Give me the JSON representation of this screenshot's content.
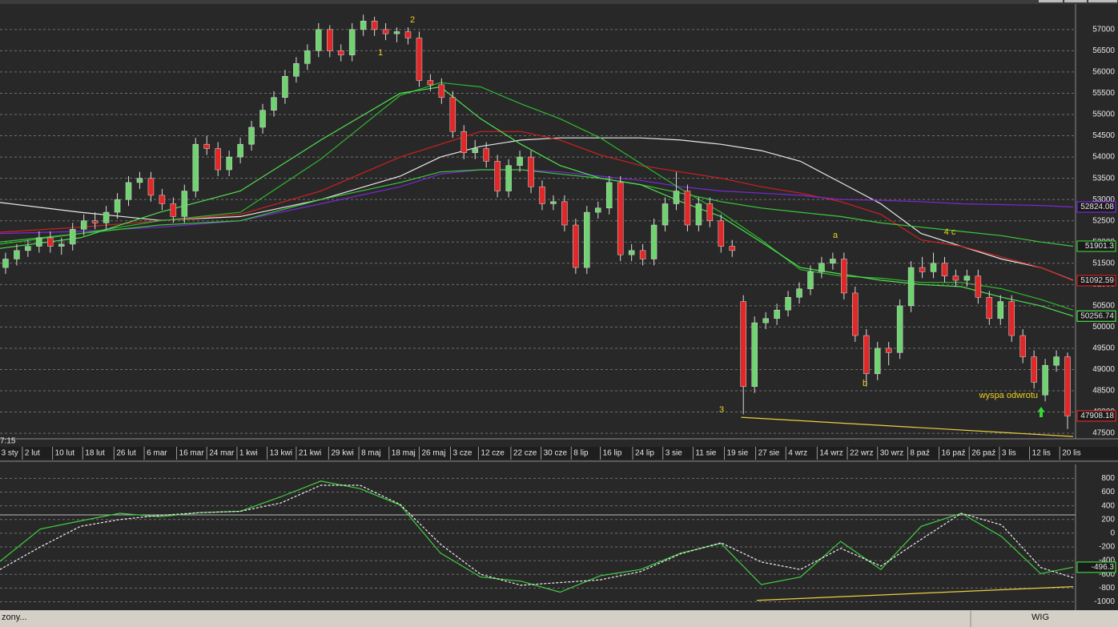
{
  "chart_data": [
    {
      "type": "candlestick",
      "xlim": [
        -0.5,
        95.5
      ],
      "xticks": [
        {
          "value": -0.6,
          "label": "3 sty"
        },
        {
          "value": 1.5,
          "label": "2 lut"
        },
        {
          "value": 4.2,
          "label": "10 lut"
        },
        {
          "value": 6.9,
          "label": "18 lut"
        },
        {
          "value": 9.7,
          "label": "26 lut"
        },
        {
          "value": 12.4,
          "label": "6 mar"
        },
        {
          "value": 15.3,
          "label": "16 mar"
        },
        {
          "value": 18.0,
          "label": "24 mar"
        },
        {
          "value": 20.7,
          "label": "1 kwi"
        },
        {
          "value": 23.4,
          "label": "13 kwi"
        },
        {
          "value": 26.0,
          "label": "21 kwi"
        },
        {
          "value": 28.9,
          "label": "29 kwi"
        },
        {
          "value": 31.6,
          "label": "8 maj"
        },
        {
          "value": 34.3,
          "label": "18 maj"
        },
        {
          "value": 37.0,
          "label": "26 maj"
        },
        {
          "value": 39.8,
          "label": "3 cze"
        },
        {
          "value": 42.3,
          "label": "12 cze"
        },
        {
          "value": 45.2,
          "label": "22 cze"
        },
        {
          "value": 47.9,
          "label": "30 cze"
        },
        {
          "value": 50.6,
          "label": "8 lip"
        },
        {
          "value": 53.2,
          "label": "16 lip"
        },
        {
          "value": 56.1,
          "label": "24 lip"
        },
        {
          "value": 58.8,
          "label": "3 sie"
        },
        {
          "value": 61.5,
          "label": "11 sie"
        },
        {
          "value": 64.3,
          "label": "19 sie"
        },
        {
          "value": 67.1,
          "label": "27 sie"
        },
        {
          "value": 69.8,
          "label": "4 wrz"
        },
        {
          "value": 72.6,
          "label": "14 wrz"
        },
        {
          "value": 75.3,
          "label": "22 wrz"
        },
        {
          "value": 78.0,
          "label": "30 wrz"
        },
        {
          "value": 80.7,
          "label": "8 paź"
        },
        {
          "value": 83.5,
          "label": "16 paź"
        },
        {
          "value": 86.2,
          "label": "26 paź"
        },
        {
          "value": 88.9,
          "label": "3 lis"
        },
        {
          "value": 91.6,
          "label": "12 lis"
        },
        {
          "value": 94.3,
          "label": "20 lis"
        }
      ],
      "ylim": [
        47370,
        57600
      ],
      "yticks": [
        47500,
        48000,
        48500,
        49000,
        49500,
        50000,
        50500,
        51000,
        51500,
        52000,
        52500,
        53000,
        53500,
        54000,
        54500,
        55000,
        55500,
        56000,
        56500,
        57000
      ],
      "grid": true,
      "up_color": "#6fd36f",
      "down_color": "#e02828",
      "candles": [
        [
          51400,
          51750,
          51250,
          51600
        ],
        [
          51600,
          51950,
          51450,
          51800
        ],
        [
          51800,
          52050,
          51650,
          51900
        ],
        [
          51900,
          52250,
          51750,
          52100
        ],
        [
          52100,
          52250,
          51750,
          51900
        ],
        [
          51900,
          52100,
          51700,
          51950
        ],
        [
          51950,
          52450,
          51800,
          52300
        ],
        [
          52300,
          52650,
          52150,
          52500
        ],
        [
          52500,
          52700,
          52300,
          52450
        ],
        [
          52450,
          52850,
          52300,
          52700
        ],
        [
          52700,
          53150,
          52550,
          53000
        ],
        [
          53000,
          53550,
          52850,
          53400
        ],
        [
          53400,
          53650,
          53250,
          53500
        ],
        [
          53500,
          53650,
          52950,
          53100
        ],
        [
          53100,
          53250,
          52750,
          52900
        ],
        [
          52900,
          53050,
          52450,
          52600
        ],
        [
          52600,
          53350,
          52450,
          53200
        ],
        [
          53200,
          54450,
          53050,
          54300
        ],
        [
          54300,
          54500,
          54050,
          54200
        ],
        [
          54200,
          54350,
          53550,
          53700
        ],
        [
          53700,
          54150,
          53550,
          54000
        ],
        [
          54000,
          54450,
          53850,
          54300
        ],
        [
          54300,
          54850,
          54150,
          54700
        ],
        [
          54700,
          55250,
          54550,
          55100
        ],
        [
          55100,
          55550,
          54950,
          55400
        ],
        [
          55400,
          56050,
          55250,
          55900
        ],
        [
          55900,
          56350,
          55750,
          56200
        ],
        [
          56200,
          56650,
          56050,
          56500
        ],
        [
          56500,
          57150,
          56350,
          57000
        ],
        [
          57000,
          57100,
          56350,
          56500
        ],
        [
          56500,
          56650,
          56250,
          56400
        ],
        [
          56400,
          57150,
          56250,
          57000
        ],
        [
          57000,
          57350,
          56850,
          57200
        ],
        [
          57200,
          57300,
          56850,
          57000
        ],
        [
          57000,
          57150,
          56750,
          56900
        ],
        [
          56900,
          57050,
          56700,
          56950
        ],
        [
          56950,
          57050,
          56650,
          56800
        ],
        [
          56800,
          56950,
          55650,
          55800
        ],
        [
          55800,
          55950,
          55550,
          55700
        ],
        [
          55700,
          55850,
          55250,
          55400
        ],
        [
          55400,
          55550,
          54450,
          54600
        ],
        [
          54600,
          54750,
          53950,
          54100
        ],
        [
          54100,
          54400,
          53950,
          54200
        ],
        [
          54200,
          54350,
          53750,
          53900
        ],
        [
          53900,
          54050,
          53050,
          53200
        ],
        [
          53200,
          53950,
          53050,
          53800
        ],
        [
          53800,
          54150,
          53650,
          54000
        ],
        [
          54000,
          54150,
          53150,
          53300
        ],
        [
          53300,
          53450,
          52750,
          52900
        ],
        [
          52900,
          53100,
          52750,
          52950
        ],
        [
          52950,
          53100,
          52250,
          52400
        ],
        [
          52400,
          52550,
          51250,
          51400
        ],
        [
          51400,
          52850,
          51250,
          52700
        ],
        [
          52700,
          52950,
          52550,
          52800
        ],
        [
          52800,
          53550,
          52650,
          53400
        ],
        [
          53400,
          53550,
          51550,
          51700
        ],
        [
          51700,
          51950,
          51550,
          51800
        ],
        [
          51800,
          51950,
          51450,
          51600
        ],
        [
          51600,
          52550,
          51450,
          52400
        ],
        [
          52400,
          53050,
          52250,
          52900
        ],
        [
          52900,
          53650,
          52750,
          53200
        ],
        [
          53200,
          53350,
          52250,
          52400
        ],
        [
          52400,
          53050,
          52250,
          52900
        ],
        [
          52900,
          53050,
          52350,
          52500
        ],
        [
          52500,
          52650,
          51750,
          51900
        ],
        [
          51900,
          52050,
          51650,
          51800
        ],
        [
          50600,
          50750,
          47950,
          48600
        ],
        [
          48600,
          50250,
          48450,
          50100
        ],
        [
          50100,
          50350,
          49950,
          50200
        ],
        [
          50200,
          50550,
          50050,
          50400
        ],
        [
          50400,
          50850,
          50250,
          50700
        ],
        [
          50700,
          51050,
          50550,
          50900
        ],
        [
          50900,
          51450,
          50750,
          51300
        ],
        [
          51300,
          51650,
          51150,
          51500
        ],
        [
          51500,
          51750,
          51350,
          51600
        ],
        [
          51600,
          51750,
          50650,
          50800
        ],
        [
          50800,
          50950,
          49650,
          49800
        ],
        [
          49800,
          49950,
          48600,
          48900
        ],
        [
          48900,
          49650,
          48750,
          49500
        ],
        [
          49500,
          49650,
          49100,
          49400
        ],
        [
          49400,
          50650,
          49250,
          50500
        ],
        [
          50500,
          51550,
          50350,
          51400
        ],
        [
          51400,
          51650,
          51150,
          51300
        ],
        [
          51300,
          51750,
          51150,
          51500
        ],
        [
          51500,
          51650,
          51050,
          51200
        ],
        [
          51200,
          51350,
          50950,
          51100
        ],
        [
          51100,
          51350,
          50950,
          51200
        ],
        [
          51200,
          51350,
          50550,
          50700
        ],
        [
          50700,
          50850,
          50050,
          50200
        ],
        [
          50200,
          50750,
          50050,
          50600
        ],
        [
          50600,
          50750,
          49650,
          49800
        ],
        [
          49800,
          49950,
          49150,
          49300
        ],
        [
          49300,
          49450,
          48550,
          48700
        ],
        [
          48400,
          49250,
          48250,
          49100
        ],
        [
          49100,
          49450,
          48950,
          49300
        ],
        [
          49300,
          49400,
          47600,
          47908.18
        ]
      ],
      "ma_x": [
        -0.5,
        6.7,
        13.8,
        21.0,
        28.2,
        35.3,
        38.9,
        42.5,
        46.1,
        49.6,
        53.2,
        56.8,
        60.4,
        64.0,
        67.6,
        71.1,
        74.7,
        78.3,
        81.9,
        85.5,
        89.1,
        92.6,
        95.5
      ],
      "series": [
        {
          "color": "#e8e8e8",
          "last_box": false,
          "values": [
            52930,
            52700,
            52510,
            52600,
            53000,
            53550,
            54000,
            54250,
            54400,
            54450,
            54450,
            54450,
            54400,
            54300,
            54150,
            53900,
            53400,
            52900,
            52200,
            51900,
            51600,
            51400,
            51100
          ]
        },
        {
          "color": "#d02020",
          "last_box": true,
          "values": [
            52230,
            52350,
            52500,
            52650,
            53200,
            54000,
            54300,
            54600,
            54600,
            54400,
            54050,
            53800,
            53650,
            53500,
            53300,
            53150,
            52950,
            52650,
            52050,
            51900,
            51650,
            51400,
            51092.59
          ]
        },
        {
          "color": "#7a28d8",
          "last_box": true,
          "values": [
            52200,
            52250,
            52350,
            52500,
            52900,
            53300,
            53600,
            53700,
            53700,
            53650,
            53550,
            53450,
            53300,
            53200,
            53150,
            53100,
            53000,
            52980,
            52950,
            52900,
            52880,
            52860,
            52824.08
          ]
        },
        {
          "color": "#3cc83c",
          "last_box": true,
          "values": [
            52000,
            52200,
            52400,
            52500,
            53000,
            53400,
            53650,
            53700,
            53700,
            53600,
            53500,
            53350,
            53150,
            52950,
            52800,
            52700,
            52600,
            52450,
            52350,
            52250,
            52150,
            52000,
            51901.3
          ]
        },
        {
          "color": "#2fb82f",
          "last_box": false,
          "values": [
            51950,
            52200,
            52500,
            52700,
            53950,
            55450,
            55750,
            55650,
            55250,
            54900,
            54450,
            53850,
            53250,
            52700,
            52050,
            51350,
            51200,
            51150,
            51050,
            51050,
            50900,
            50650,
            50400
          ]
        },
        {
          "color": "#50e050",
          "last_box": true,
          "values": [
            51850,
            52100,
            52700,
            53200,
            54400,
            55500,
            55650,
            54900,
            54300,
            53800,
            53500,
            53350,
            52950,
            52600,
            52000,
            51400,
            51250,
            51100,
            51000,
            50950,
            50700,
            50500,
            50256.74
          ]
        }
      ],
      "trendline": {
        "color": "#e8d040",
        "x": [
          65.8,
          95.5
        ],
        "y": [
          47877,
          47424
        ]
      },
      "annotations": [
        "2",
        "1",
        "3",
        "a",
        "b",
        "4 c",
        "wyspa odwrotu"
      ],
      "time_label": "7:15"
    },
    {
      "type": "line",
      "xlim": [
        -0.5,
        95.5
      ],
      "x": [
        -0.5,
        3.1,
        6.7,
        10.2,
        13.8,
        17.4,
        21.0,
        24.6,
        28.2,
        31.7,
        35.3,
        38.9,
        42.5,
        46.1,
        49.6,
        53.2,
        56.8,
        60.4,
        64.0,
        67.6,
        71.1,
        74.7,
        78.3,
        81.9,
        85.5,
        89.1,
        92.6,
        95.5
      ],
      "ylim": [
        -1100,
        980
      ],
      "yticks": [
        -1000,
        -800,
        -600,
        -400,
        -200,
        0,
        200,
        400,
        600,
        800
      ],
      "grid": true,
      "series": [
        {
          "color": "#40d040",
          "style": "solid",
          "last_box": true,
          "values": [
            -410,
            60,
            180,
            290,
            240,
            300,
            320,
            530,
            760,
            650,
            410,
            -290,
            -640,
            -700,
            -860,
            -620,
            -530,
            -290,
            -150,
            -750,
            -640,
            -120,
            -530,
            100,
            290,
            -50,
            -590,
            -496.3
          ]
        },
        {
          "color": "#f0f0f0",
          "style": "dashed",
          "last_box": false,
          "values": [
            -530,
            -200,
            100,
            200,
            260,
            300,
            320,
            440,
            700,
            700,
            420,
            -160,
            -600,
            -760,
            -720,
            -680,
            -560,
            -300,
            -140,
            -420,
            -530,
            -220,
            -480,
            -90,
            290,
            120,
            -500,
            -650
          ]
        }
      ],
      "trendline": {
        "color": "#e8d040",
        "x": [
          67.2,
          95.5
        ],
        "y": [
          -980,
          -780
        ]
      }
    }
  ],
  "status": {
    "left": "zony...",
    "right": "WIG"
  }
}
